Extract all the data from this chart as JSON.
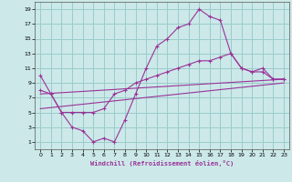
{
  "xlabel": "Windchill (Refroidissement éolien,°C)",
  "background_color": "#cce8e8",
  "grid_color": "#99cccc",
  "line_color": "#993399",
  "xlim": [
    -0.5,
    23.5
  ],
  "ylim": [
    0,
    20
  ],
  "xticks": [
    0,
    1,
    2,
    3,
    4,
    5,
    6,
    7,
    8,
    9,
    10,
    11,
    12,
    13,
    14,
    15,
    16,
    17,
    18,
    19,
    20,
    21,
    22,
    23
  ],
  "yticks": [
    1,
    3,
    5,
    7,
    9,
    11,
    13,
    15,
    17,
    19
  ],
  "line1_x": [
    0,
    1,
    2,
    3,
    4,
    5,
    6,
    7,
    8,
    9,
    10,
    11,
    12,
    13,
    14,
    15,
    16,
    17,
    18,
    19,
    20,
    21,
    22,
    23
  ],
  "line1_y": [
    10,
    7.5,
    5,
    3,
    2.5,
    1,
    1.5,
    1,
    4,
    7.5,
    11,
    14,
    15,
    16.5,
    17,
    19,
    18,
    17.5,
    13,
    11,
    10.5,
    11,
    9.5,
    9.5
  ],
  "line2_x": [
    0,
    1,
    2,
    3,
    4,
    5,
    6,
    7,
    8,
    9,
    10,
    11,
    12,
    13,
    14,
    15,
    16,
    17,
    18,
    19,
    20,
    21,
    22,
    23
  ],
  "line2_y": [
    8,
    7.5,
    5,
    5,
    5,
    5,
    5.5,
    7.5,
    8,
    9,
    9.5,
    10,
    10.5,
    11,
    11.5,
    12,
    12,
    12.5,
    13,
    11,
    10.5,
    10.5,
    9.5,
    9.5
  ],
  "line3_x": [
    0,
    23
  ],
  "line3_y": [
    7.5,
    9.5
  ],
  "line4_x": [
    0,
    23
  ],
  "line4_y": [
    5.5,
    9.0
  ]
}
